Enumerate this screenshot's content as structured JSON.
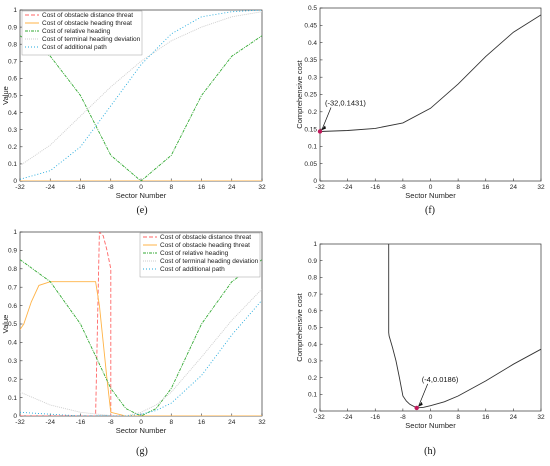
{
  "chart_data": [
    {
      "panel": "(e)",
      "type": "line",
      "xlabel": "Sector Number",
      "ylabel": "Value",
      "xlim": [
        -32,
        32
      ],
      "ylim": [
        0,
        1
      ],
      "xticks": [
        -32,
        -24,
        -16,
        -8,
        0,
        8,
        16,
        24,
        32
      ],
      "yticks": [
        0,
        0.1,
        0.2,
        0.3,
        0.4,
        0.5,
        0.6,
        0.7,
        0.8,
        0.9,
        1
      ],
      "legend": "top-left",
      "series": [
        {
          "name": "Cost of obstacle distance threat",
          "color": "#ff6666",
          "dash": "4,2",
          "x": [
            -32,
            32
          ],
          "y": [
            0,
            0
          ]
        },
        {
          "name": "Cost of obstacle heading threat",
          "color": "#ffb347",
          "dash": "",
          "x": [
            -32,
            32
          ],
          "y": [
            0,
            0
          ]
        },
        {
          "name": "Cost of relative heading",
          "color": "#33aa33",
          "dash": "3,1,1,1",
          "x": [
            -32,
            -24,
            -16,
            -8,
            0,
            8,
            16,
            24,
            32
          ],
          "y": [
            0.85,
            0.73,
            0.5,
            0.15,
            0,
            0.15,
            0.5,
            0.73,
            0.85
          ]
        },
        {
          "name": "Cost of terminal heading deviation",
          "color": "#cccccc",
          "dash": "1,1",
          "x": [
            -32,
            -24,
            -16,
            -8,
            0,
            8,
            16,
            24,
            32
          ],
          "y": [
            0.09,
            0.21,
            0.38,
            0.55,
            0.7,
            0.82,
            0.9,
            0.96,
            0.99
          ]
        },
        {
          "name": "Cost of additional path",
          "color": "#22aadd",
          "dash": "1,2",
          "x": [
            -32,
            -24,
            -16,
            -8,
            0,
            8,
            16,
            24,
            32
          ],
          "y": [
            0.01,
            0.06,
            0.2,
            0.44,
            0.68,
            0.86,
            0.96,
            0.99,
            1.0
          ]
        }
      ]
    },
    {
      "panel": "(f)",
      "type": "line",
      "xlabel": "Sector Number",
      "ylabel": "Comprehensive cost",
      "xlim": [
        -32,
        32
      ],
      "ylim": [
        0,
        0.5
      ],
      "xticks": [
        -32,
        -24,
        -16,
        -8,
        0,
        8,
        16,
        24,
        32
      ],
      "yticks": [
        0,
        0.05,
        0.1,
        0.15,
        0.2,
        0.25,
        0.3,
        0.35,
        0.4,
        0.45,
        0.5
      ],
      "series": [
        {
          "color": "#333333",
          "x": [
            -32,
            -24,
            -16,
            -8,
            0,
            8,
            16,
            24,
            32
          ],
          "y": [
            0.1431,
            0.146,
            0.152,
            0.168,
            0.21,
            0.28,
            0.36,
            0.43,
            0.48
          ]
        }
      ],
      "annotation": {
        "text": "(-32,0.1431)",
        "x": -32,
        "y": 0.1431
      }
    },
    {
      "panel": "(g)",
      "type": "line",
      "xlabel": "Sector Number",
      "ylabel": "Value",
      "xlim": [
        -32,
        32
      ],
      "ylim": [
        0,
        1
      ],
      "xticks": [
        -32,
        -24,
        -16,
        -8,
        0,
        8,
        16,
        24,
        32
      ],
      "yticks": [
        0,
        0.1,
        0.2,
        0.3,
        0.4,
        0.5,
        0.6,
        0.7,
        0.8,
        0.9,
        1
      ],
      "legend": "top-right",
      "series": [
        {
          "name": "Cost of obstacle distance threat",
          "color": "#ff6666",
          "dash": "4,2",
          "x": [
            -32,
            -12,
            -11,
            -10,
            -9,
            -8,
            -8,
            32
          ],
          "y": [
            0,
            0,
            1.0,
            0.98,
            0.9,
            0.8,
            0,
            0
          ]
        },
        {
          "name": "Cost of obstacle heading threat",
          "color": "#ffb347",
          "dash": "",
          "x": [
            -32,
            -31,
            -29,
            -27,
            -24,
            -18,
            -15,
            -12,
            -11,
            -9,
            -8,
            -4,
            32
          ],
          "y": [
            0.47,
            0.5,
            0.62,
            0.71,
            0.73,
            0.73,
            0.73,
            0.73,
            0.6,
            0.2,
            0.02,
            0,
            0
          ]
        },
        {
          "name": "Cost of relative heading",
          "color": "#33aa33",
          "dash": "3,1,1,1",
          "x": [
            -32,
            -24,
            -16,
            -8,
            -4,
            0,
            4,
            8,
            16,
            24,
            32
          ],
          "y": [
            0.85,
            0.73,
            0.5,
            0.15,
            0.04,
            0,
            0.04,
            0.15,
            0.5,
            0.73,
            0.85
          ]
        },
        {
          "name": "Cost of terminal heading deviation",
          "color": "#cccccc",
          "dash": "1,1",
          "x": [
            -32,
            -24,
            -16,
            -8,
            -4,
            0,
            4,
            8,
            16,
            24,
            32
          ],
          "y": [
            0.13,
            0.06,
            0.02,
            0.002,
            0.0,
            0.02,
            0.06,
            0.13,
            0.32,
            0.52,
            0.69
          ]
        },
        {
          "name": "Cost of additional path",
          "color": "#22aadd",
          "dash": "1,2",
          "x": [
            -32,
            -24,
            -16,
            -8,
            -4,
            0,
            4,
            8,
            16,
            24,
            32
          ],
          "y": [
            0.02,
            0.01,
            0.0,
            0.0,
            0.0,
            0.01,
            0.03,
            0.07,
            0.22,
            0.44,
            0.63
          ]
        }
      ]
    },
    {
      "panel": "(h)",
      "type": "line",
      "xlabel": "Sector Number",
      "ylabel": "Comprehensive cost",
      "xlim": [
        -32,
        32
      ],
      "ylim": [
        0,
        1
      ],
      "xticks": [
        -32,
        -24,
        -16,
        -8,
        0,
        8,
        16,
        24,
        32
      ],
      "yticks": [
        0,
        0.1,
        0.2,
        0.3,
        0.4,
        0.5,
        0.6,
        0.7,
        0.8,
        0.9,
        1
      ],
      "series": [
        {
          "color": "#333333",
          "x": [
            -12.1,
            -12.1,
            -12,
            -11,
            -10,
            -9,
            -8,
            -7,
            -6,
            -4,
            -2,
            0,
            4,
            8,
            16,
            24,
            32
          ],
          "y": [
            1.0,
            0.47,
            0.45,
            0.38,
            0.3,
            0.2,
            0.09,
            0.06,
            0.04,
            0.0186,
            0.022,
            0.032,
            0.055,
            0.09,
            0.18,
            0.28,
            0.37
          ]
        }
      ],
      "annotation": {
        "text": "(-4,0.0186)",
        "x": -4,
        "y": 0.0186
      }
    }
  ]
}
